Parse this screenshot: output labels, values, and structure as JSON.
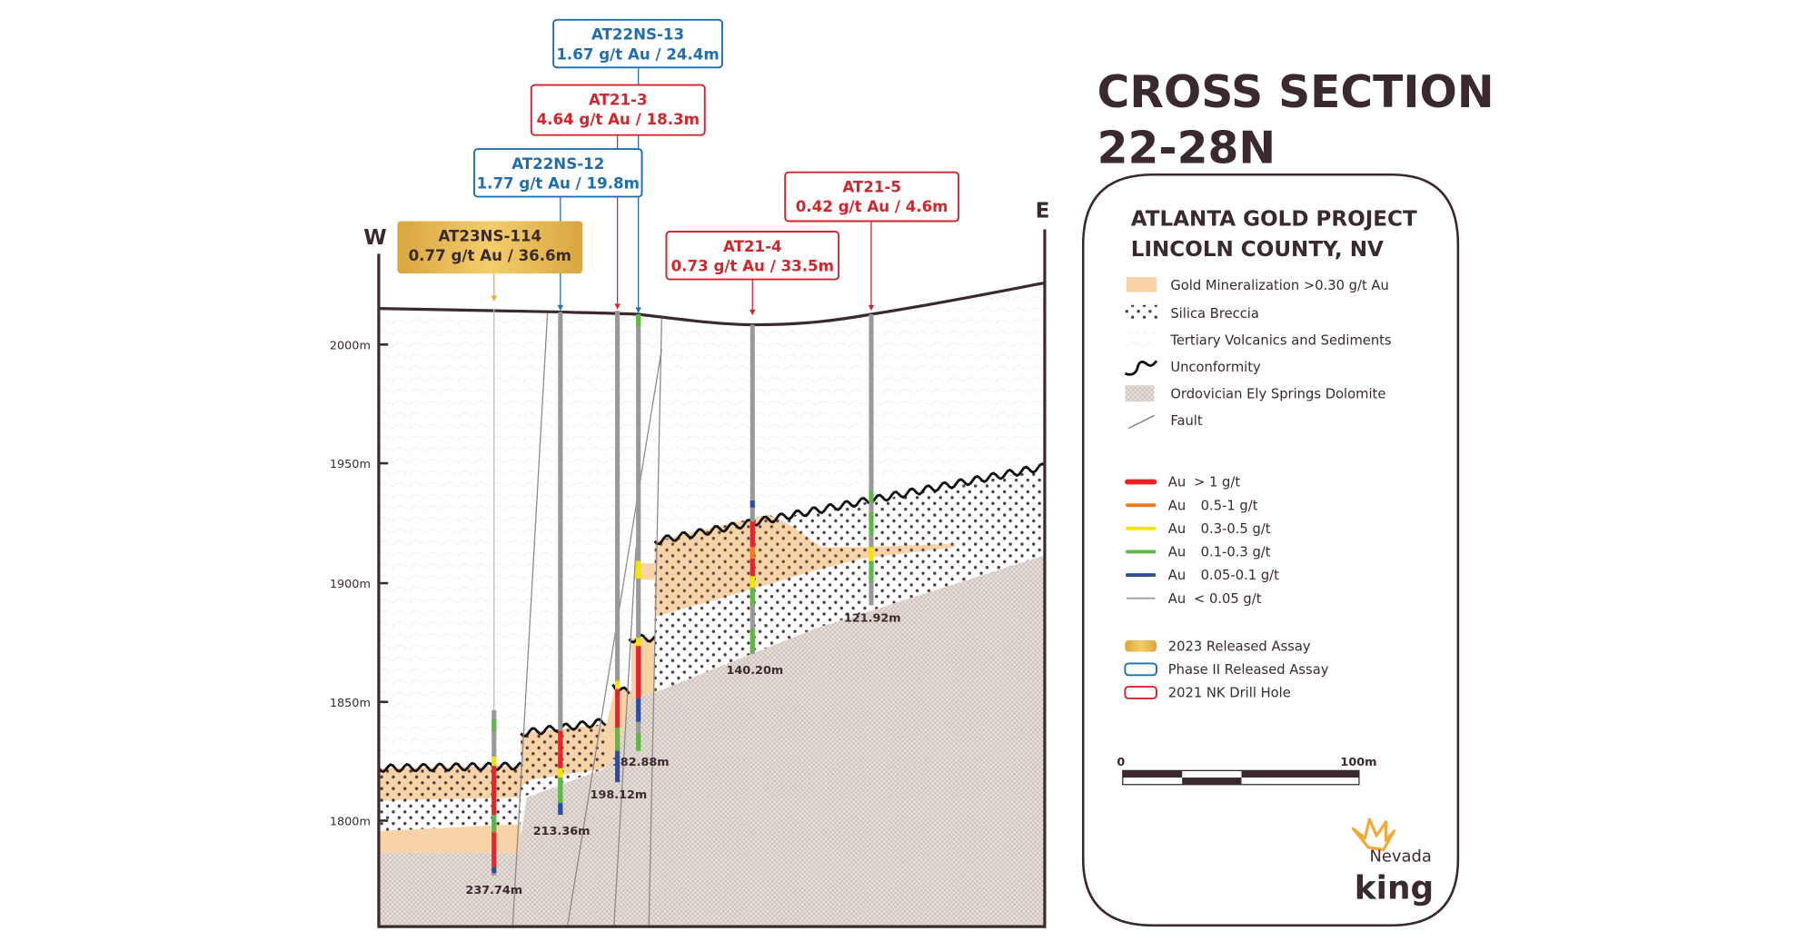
{
  "title": {
    "line1": "CROSS SECTION",
    "line2": "22-28N"
  },
  "section": {
    "west_label": "W",
    "east_label": "E"
  },
  "elevation_ticks": [
    "2000m",
    "1950m",
    "1900m",
    "1850m",
    "1800m"
  ],
  "callouts": [
    {
      "id": "AT22NS-13",
      "name": "AT22NS-13",
      "result": "1.67 g/t Au / 24.4m",
      "type": "phase2",
      "depth": "182.88m"
    },
    {
      "id": "AT21-3",
      "name": "AT21-3",
      "result": "4.64 g/t Au / 18.3m",
      "type": "nk2021",
      "depth": "198.12m"
    },
    {
      "id": "AT22NS-12",
      "name": "AT22NS-12",
      "result": "1.77 g/t Au / 19.8m",
      "type": "phase2",
      "depth": "213.36m"
    },
    {
      "id": "AT23NS-114",
      "name": "AT23NS-114",
      "result": "0.77 g/t Au / 36.6m",
      "type": "assay2023",
      "depth": "237.74m"
    },
    {
      "id": "AT21-5",
      "name": "AT21-5",
      "result": "0.42 g/t Au / 4.6m",
      "type": "nk2021",
      "depth": "121.92m"
    },
    {
      "id": "AT21-4",
      "name": "AT21-4",
      "result": "0.73 g/t Au / 33.5m",
      "type": "nk2021",
      "depth": "140.20m"
    }
  ],
  "legend": {
    "title1": "ATLANTA GOLD PROJECT",
    "title2": "LINCOLN COUNTY, NV",
    "units": [
      {
        "label": "Gold Mineralization >0.30 g/t Au",
        "icon": "mineralization-swatch"
      },
      {
        "label": "Silica Breccia",
        "icon": "breccia-swatch"
      },
      {
        "label": "Tertiary Volcanics and Sediments",
        "icon": "volcanics-swatch"
      },
      {
        "label": "Unconformity",
        "icon": "unconformity-line"
      },
      {
        "label": "Ordovician Ely Springs Dolomite",
        "icon": "dolomite-swatch"
      },
      {
        "label": "Fault",
        "icon": "fault-line"
      }
    ],
    "grades": [
      {
        "prefix": "Au",
        "label": "> 1 g/t",
        "color": "#e8242a"
      },
      {
        "prefix": "Au",
        "label": "0.5-1 g/t",
        "color": "#f47a20"
      },
      {
        "prefix": "Au",
        "label": "0.3-0.5 g/t",
        "color": "#f2e500"
      },
      {
        "prefix": "Au",
        "label": "0.1-0.3 g/t",
        "color": "#5cb946"
      },
      {
        "prefix": "Au",
        "label": "0.05-0.1 g/t",
        "color": "#2a4ea0"
      },
      {
        "prefix": "Au",
        "label": "< 0.05 g/t",
        "color": "#9a9a9a"
      }
    ],
    "assays": [
      {
        "label": "2023 Released Assay",
        "type": "assay2023"
      },
      {
        "label": "Phase II Released Assay",
        "type": "phase2"
      },
      {
        "label": "2021 NK Drill Hole",
        "type": "nk2021"
      }
    ],
    "scale": {
      "start": "0",
      "end": "100m"
    }
  },
  "logo": {
    "line1": "Nevada",
    "line2": "king"
  },
  "colors": {
    "phase2": "#1f6fae",
    "nk2021": "#d0262e",
    "assay2023": "#e4b14a",
    "mineralization": "#f8d3a8",
    "dark": "#3a2a2e",
    "dolomite": "#d9cfc9"
  }
}
